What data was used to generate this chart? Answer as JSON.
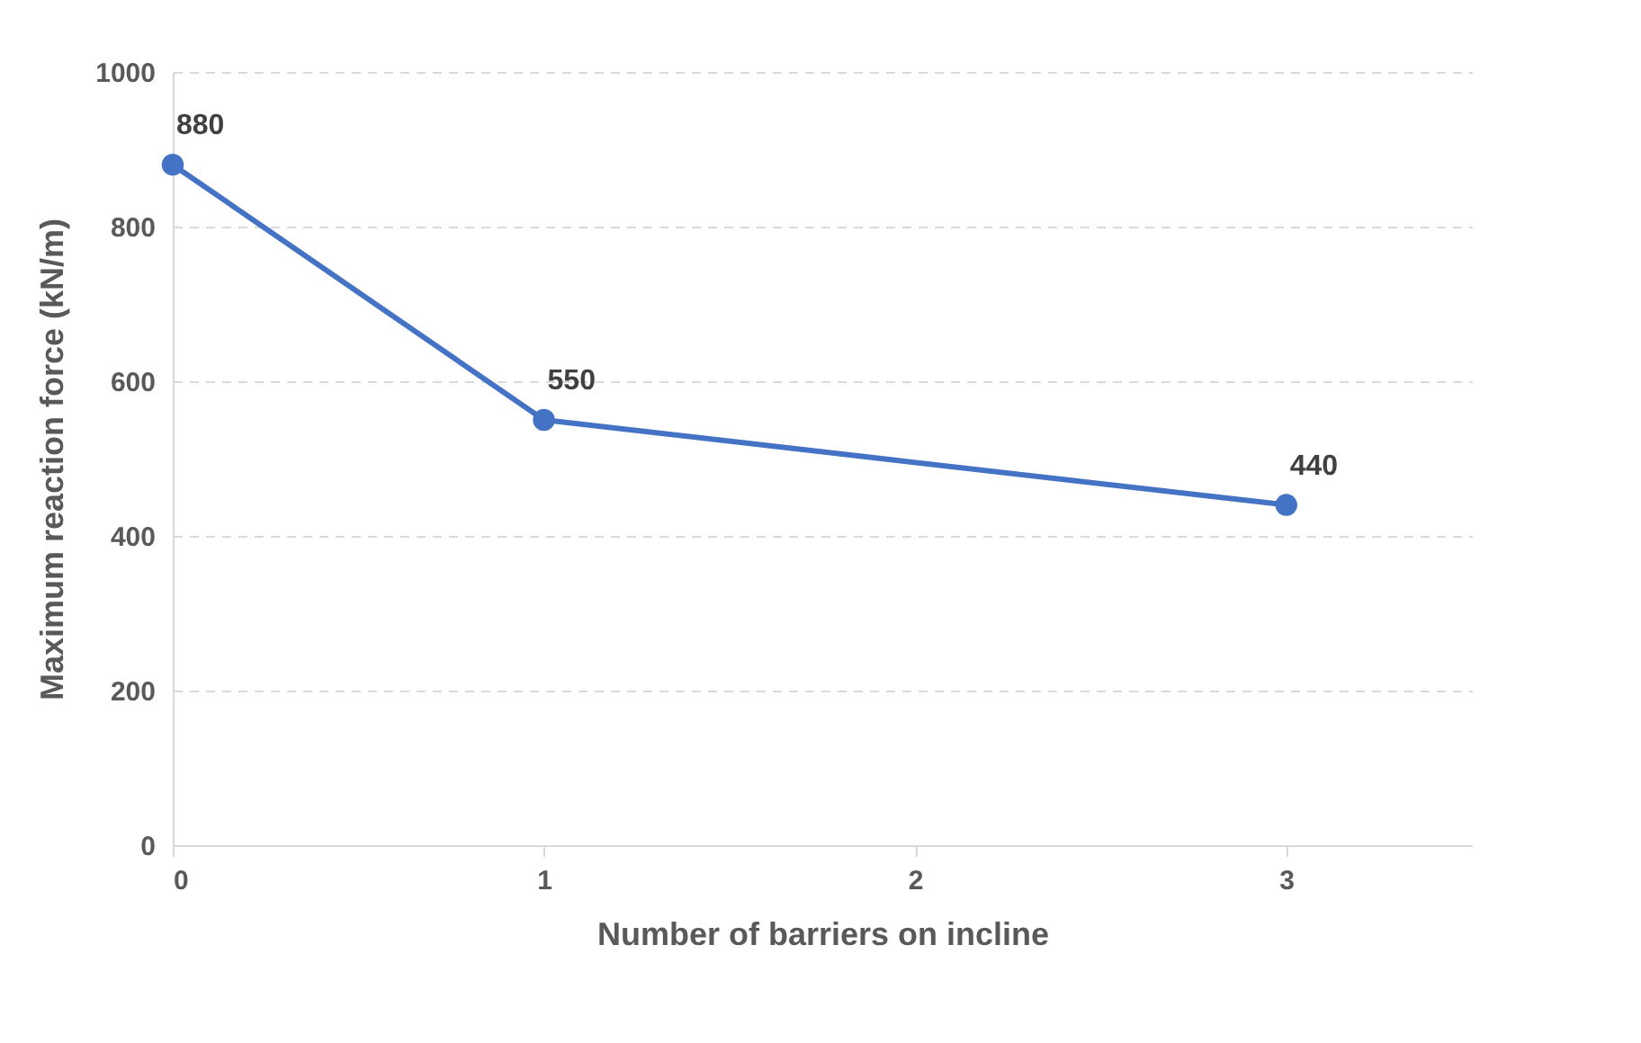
{
  "chart_data": {
    "type": "line",
    "xlabel": "Number of barriers on incline",
    "ylabel": "Maximum reaction force (kN/m)",
    "x": [
      0,
      1,
      3
    ],
    "series": [
      {
        "color": "#4472c4",
        "values": [
          880,
          550,
          440
        ]
      }
    ],
    "xlim": [
      0,
      3.5
    ],
    "xticks": [
      0,
      1,
      2,
      3
    ],
    "ylim": [
      0,
      1000
    ],
    "yticks": [
      0,
      200,
      400,
      600,
      800,
      1000
    ],
    "grid": "y",
    "marker": "circle",
    "line_style": "solid",
    "data_labels": true,
    "legend": false
  }
}
